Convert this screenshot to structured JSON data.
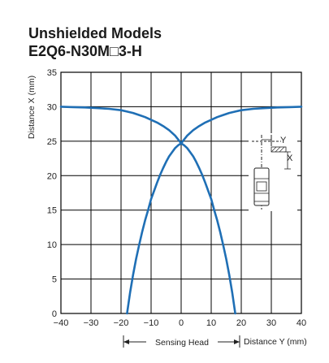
{
  "header": {
    "title_line1": "Unshielded Models",
    "title_line2": "E2Q6-N30M□3-H"
  },
  "chart_data": {
    "type": "line",
    "xlabel": "Distance Y (mm)",
    "ylabel": "Distance X (mm)",
    "xlim": [
      -40,
      40
    ],
    "ylim": [
      0,
      35
    ],
    "xticks": [
      "−40",
      "−30",
      "−20",
      "−10",
      "0",
      "10",
      "20",
      "30",
      "40"
    ],
    "yticks": [
      "0",
      "5",
      "10",
      "15",
      "20",
      "25",
      "30",
      "35"
    ],
    "grid": true,
    "sensing_head_label": "Sensing Head",
    "diagram": {
      "y_label": "Y",
      "x_label": "X"
    },
    "colors": {
      "curve": "#1f6fb5",
      "grid": "#000000"
    },
    "series": [
      {
        "values_x": [
          -18,
          -17,
          -16,
          -15,
          -14,
          -13,
          -12,
          -11,
          -10,
          -9,
          -8,
          -7,
          -6,
          -5,
          -4,
          -3,
          -2,
          -1,
          0,
          2,
          4,
          6,
          8,
          10,
          12,
          14,
          16,
          18,
          20,
          24,
          28,
          32,
          36,
          40
        ],
        "values_y": [
          0,
          3.0,
          5.6,
          7.9,
          9.9,
          11.8,
          13.5,
          15.0,
          16.6,
          17.8,
          19.0,
          20.1,
          21.1,
          22.0,
          22.8,
          23.4,
          24.0,
          24.4,
          24.7,
          25.8,
          26.6,
          27.2,
          27.7,
          28.1,
          28.5,
          28.8,
          29.1,
          29.3,
          29.5,
          29.7,
          29.8,
          29.9,
          29.95,
          30.0
        ]
      },
      {
        "values_x": [
          18,
          17,
          16,
          15,
          14,
          13,
          12,
          11,
          10,
          9,
          8,
          7,
          6,
          5,
          4,
          3,
          2,
          1,
          0,
          -2,
          -4,
          -6,
          -8,
          -10,
          -12,
          -14,
          -16,
          -18,
          -20,
          -24,
          -28,
          -32,
          -36,
          -40
        ],
        "values_y": [
          0,
          3.0,
          5.6,
          7.9,
          9.9,
          11.8,
          13.5,
          15.0,
          16.6,
          17.8,
          19.0,
          20.1,
          21.1,
          22.0,
          22.8,
          23.4,
          24.0,
          24.4,
          24.7,
          25.8,
          26.6,
          27.2,
          27.7,
          28.1,
          28.5,
          28.8,
          29.1,
          29.3,
          29.5,
          29.7,
          29.8,
          29.9,
          29.95,
          30.0
        ]
      }
    ]
  }
}
